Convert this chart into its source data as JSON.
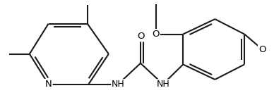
{
  "bg": "#ffffff",
  "lc": "#1a1a1a",
  "lw": 1.5,
  "lw_thin": 1.5,
  "fs": 9.5,
  "figsize": [
    3.88,
    1.42
  ],
  "dpi": 100,
  "xlim": [
    -1.52,
    1.62
  ],
  "ylim": [
    -0.52,
    0.68
  ]
}
